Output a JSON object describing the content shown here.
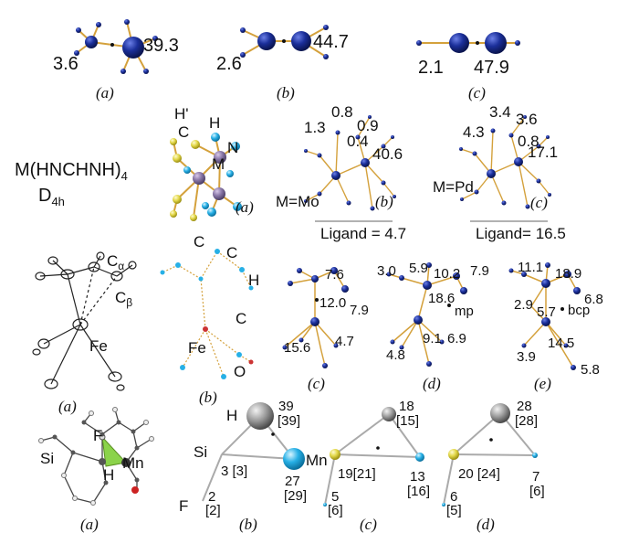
{
  "row1": {
    "a": {
      "left": "3.6",
      "right": "39.3",
      "label": "(a)"
    },
    "b": {
      "left": "2.6",
      "right": "44.7",
      "label": "(b)"
    },
    "c": {
      "left": "2.1",
      "right": "47.9",
      "label": "(c)"
    }
  },
  "row2": {
    "formula": "M(HNCHNH)",
    "formula_sub": "4",
    "symmetry": "D",
    "symmetry_sub": "4h",
    "a": {
      "h_prime": "H'",
      "h": "H",
      "c": "C",
      "n": "N",
      "m": "M",
      "label": "(a)"
    },
    "b": {
      "v1": "0.8",
      "v2": "1.3",
      "v3": "0.9",
      "v4": "0.4",
      "v5": "40.6",
      "metal": "M=Mo",
      "ligand": "Ligand = 4.7",
      "label": "(b)"
    },
    "c": {
      "v1": "3.4",
      "v2": "3.6",
      "v3": "4.3",
      "v4": "0.8",
      "v5": "17.1",
      "metal": "M=Pd",
      "ligand": "Ligand= 16.5",
      "label": "(c)"
    }
  },
  "row3": {
    "a": {
      "c_alpha": "C",
      "c_alpha_sub": "α",
      "c_beta": "C",
      "c_beta_sub": "β",
      "fe": "Fe",
      "label": "(a)"
    },
    "b": {
      "c1": "C",
      "c2": "C",
      "h": "H",
      "c3": "C",
      "fe": "Fe",
      "o": "O",
      "label": "(b)"
    },
    "c": {
      "v1": "7.6",
      "v2": "12.0",
      "v3": "7.9",
      "v4": "15.6",
      "v5": "4.7",
      "label": "(c)"
    },
    "d": {
      "v1": "3.0",
      "v2": "5.9",
      "v3": "10.2",
      "v4": "7.9",
      "v5": "18.6",
      "mp": "mp",
      "v6": "9.1",
      "v7": "6.9",
      "v8": "4.8",
      "label": "(d)"
    },
    "e": {
      "v1": "11.1",
      "v2": "18.9",
      "v3": "6.8",
      "v4": "2.9",
      "v5": "5.7",
      "bcp": "bcp",
      "v6": "14.5",
      "v7": "3.9",
      "v8": "5.8",
      "label": "(e)"
    }
  },
  "row4": {
    "a": {
      "f": "F",
      "si": "Si",
      "h": "H",
      "mn": "Mn",
      "label": "(a)"
    },
    "b": {
      "h": "H",
      "si": "Si",
      "mn": "Mn",
      "f": "F",
      "h_val": "39",
      "h_ref": "[39]",
      "si_val": "3 [3]",
      "mn_val": "27",
      "mn_ref": "[29]",
      "f_val": "2",
      "f_ref": "[2]",
      "label": "(b)"
    },
    "c": {
      "h_val": "18",
      "h_ref": "[15]",
      "si_val": "19[21]",
      "mn_val": "13",
      "mn_ref": "[16]",
      "f_val": "5",
      "f_ref": "[6]",
      "label": "(c)"
    },
    "d": {
      "h_val": "28",
      "h_ref": "[28]",
      "si_val": "20 [24]",
      "mn_val": "7",
      "mn_ref": "[6]",
      "f_val": "6",
      "f_ref": "[5]",
      "label": "(d)"
    }
  },
  "colors": {
    "atom_blue": "#1b2f8f",
    "bond": "#d4a13c",
    "cyan": "#27b0e6",
    "yellow": "#e3d84a",
    "grey_sphere": "#8e8e8e"
  }
}
